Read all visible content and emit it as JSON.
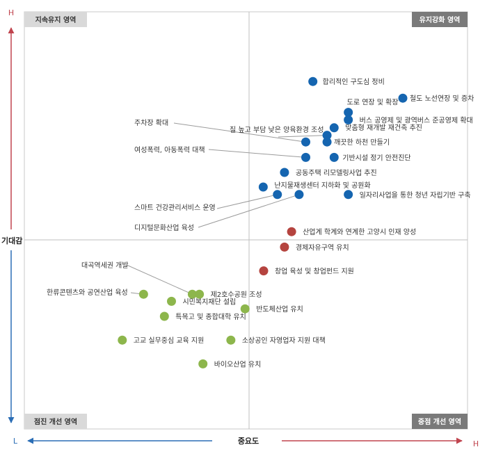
{
  "chart_data": {
    "type": "scatter",
    "xlabel": "중요도",
    "ylabel": "기대감",
    "x_low_label": "L",
    "x_high_label": "H",
    "y_high_label": "H",
    "xlim": [
      0,
      100
    ],
    "ylim": [
      0,
      100
    ],
    "quadrants": {
      "top_left": "지속유지 영역",
      "top_right": "유지강화 영역",
      "bottom_left": "점진 개선 영역",
      "bottom_right": "중점 개선 영역"
    },
    "colors": {
      "blue": "#1565b0",
      "red": "#b5443f",
      "green": "#8db64c",
      "axis_low": "#2a6db5",
      "axis_high": "#c0444e"
    },
    "points": [
      {
        "label": "합리적인 구도심 정비",
        "x": 65.1,
        "y": 83.3,
        "group": "blue"
      },
      {
        "label": "철도 노선연장 및 증차",
        "x": 85.4,
        "y": 79.3,
        "group": "blue"
      },
      {
        "label": "도로 연장 및 확장",
        "x": 73.1,
        "y": 75.9,
        "group": "blue"
      },
      {
        "label": "버스 공영제 및 광역버스 준공영제 확대",
        "x": 73.1,
        "y": 74.1,
        "group": "blue"
      },
      {
        "label": "맞춤형 재개발 재건축 추진",
        "x": 69.9,
        "y": 72.2,
        "group": "blue"
      },
      {
        "label": "질 높고 부담 낮은 양육환경 조성",
        "x": 68.3,
        "y": 70.4,
        "group": "blue"
      },
      {
        "label": "깨끗한 하천 만들기",
        "x": 68.3,
        "y": 68.8,
        "group": "blue"
      },
      {
        "label": "주차장 확대",
        "x": 63.5,
        "y": 68.8,
        "group": "blue"
      },
      {
        "label": "기반시설 정기 안전진단",
        "x": 69.9,
        "y": 65.1,
        "group": "blue"
      },
      {
        "label": "여성폭력, 아동폭력 대책",
        "x": 63.5,
        "y": 65.1,
        "group": "blue"
      },
      {
        "label": "공동주택 리모델링사업 추진",
        "x": 58.7,
        "y": 61.5,
        "group": "blue"
      },
      {
        "label": "난지물재생센터 지하화 및 공원화",
        "x": 53.9,
        "y": 58.0,
        "group": "blue"
      },
      {
        "label": "스마트 건강관리서비스 운영",
        "x": 57.1,
        "y": 56.2,
        "group": "blue"
      },
      {
        "label": "디지털문화산업 육성",
        "x": 62.0,
        "y": 56.2,
        "group": "blue"
      },
      {
        "label": "일자리사업을 통한 청년 자립기반 구축",
        "x": 73.1,
        "y": 56.2,
        "group": "blue"
      },
      {
        "label": "산업계 학계와 연계한 고양시 인재 양성",
        "x": 60.3,
        "y": 47.3,
        "group": "red"
      },
      {
        "label": "경제자유구역 유치",
        "x": 58.7,
        "y": 43.6,
        "group": "red"
      },
      {
        "label": "창업 육성 및 창업펀드 지원",
        "x": 54.0,
        "y": 37.9,
        "group": "red"
      },
      {
        "label": "한류콘텐츠와 공연산업 육성",
        "x": 26.9,
        "y": 32.3,
        "group": "green"
      },
      {
        "label": "대곡역세권 개발",
        "x": 37.9,
        "y": 32.3,
        "group": "green"
      },
      {
        "label": "제2호수공원 조성",
        "x": 39.5,
        "y": 32.3,
        "group": "green"
      },
      {
        "label": "시민복지재단 설립",
        "x": 33.2,
        "y": 30.6,
        "group": "green"
      },
      {
        "label": "반도체산업 유치",
        "x": 49.8,
        "y": 28.8,
        "group": "green"
      },
      {
        "label": "특목고 및 종합대학 유치",
        "x": 31.6,
        "y": 27.0,
        "group": "green"
      },
      {
        "label": "고교 실무중심 교육 지원",
        "x": 22.1,
        "y": 21.3,
        "group": "green"
      },
      {
        "label": "소상공인 자영업자 지원 대책",
        "x": 46.6,
        "y": 21.3,
        "group": "green"
      },
      {
        "label": "바이오산업 유치",
        "x": 40.3,
        "y": 15.6,
        "group": "green"
      }
    ]
  }
}
